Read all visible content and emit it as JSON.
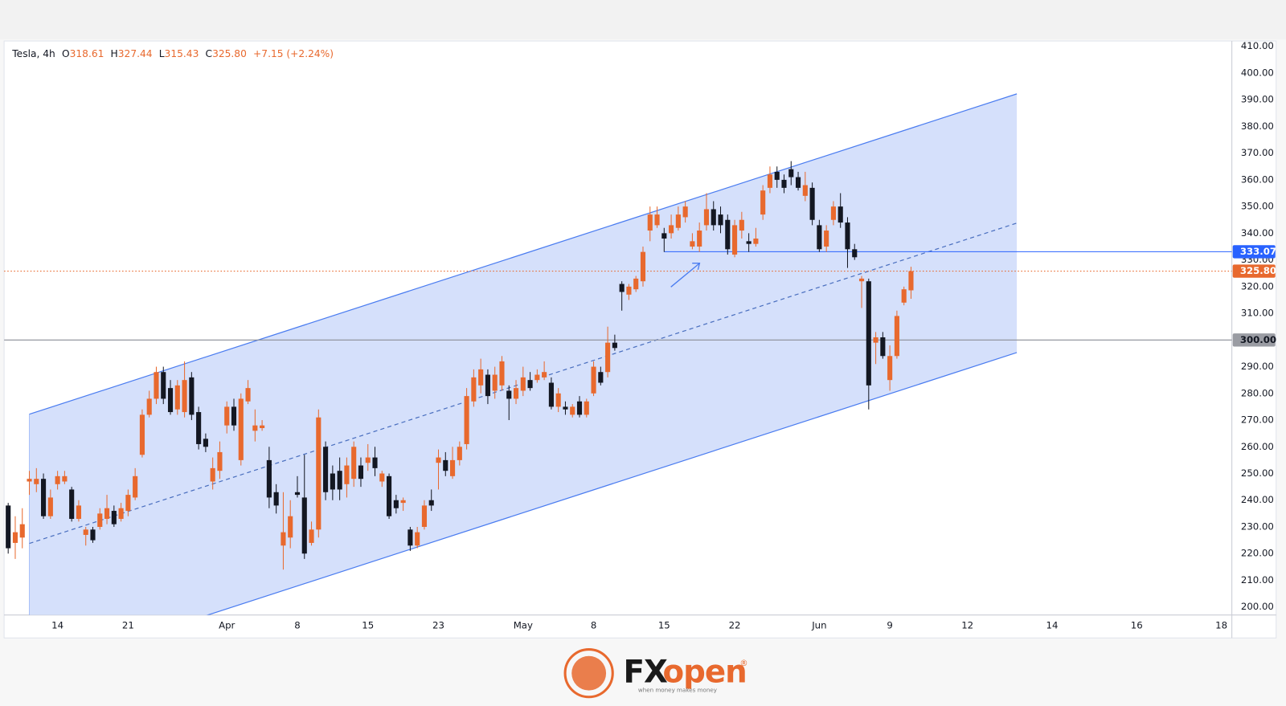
{
  "chart_data": {
    "type": "candlestick",
    "header": {
      "symbol": "Tesla, 4h",
      "fields": [
        {
          "key": "O",
          "value": "318.61"
        },
        {
          "key": "H",
          "value": "327.44"
        },
        {
          "key": "L",
          "value": "315.43"
        },
        {
          "key": "C",
          "value": "325.80"
        }
      ],
      "change": "+7.15 (+2.24%)"
    },
    "up_color": "#e8692e",
    "down_color": "#131722",
    "x": [
      0,
      1,
      2,
      3,
      4,
      5,
      6,
      7,
      8,
      9,
      10,
      11,
      12,
      13,
      14,
      15,
      16,
      17,
      18,
      19,
      20,
      21,
      22,
      23,
      24,
      25,
      26,
      27,
      28,
      29,
      30,
      31,
      32,
      33,
      34,
      35,
      36,
      37,
      38,
      39,
      40,
      41,
      42,
      43,
      44,
      45,
      46,
      47,
      48,
      49,
      50,
      51,
      52,
      53,
      54,
      55,
      56,
      57,
      58,
      59,
      60,
      61,
      62,
      63,
      64,
      65,
      66,
      67,
      68,
      69,
      70,
      71,
      72,
      73,
      74,
      75,
      76,
      77,
      78,
      79,
      80,
      81,
      82,
      83,
      84,
      85,
      86,
      87,
      88,
      89,
      90,
      91,
      92,
      93,
      94,
      95,
      96,
      97,
      98,
      99,
      100,
      101,
      102,
      103,
      104,
      105,
      106,
      107,
      108,
      109,
      110,
      111,
      112,
      113,
      114,
      115,
      116,
      117,
      118,
      119,
      120,
      121,
      122,
      123,
      124,
      125,
      126,
      127,
      128
    ],
    "open": [
      238,
      224,
      226,
      247,
      246,
      248,
      234,
      246,
      247,
      244,
      233,
      227,
      229,
      230,
      233,
      236,
      233,
      236,
      241,
      257,
      272,
      278,
      288,
      282,
      274,
      273,
      286,
      273,
      263,
      247,
      251,
      268,
      275,
      255,
      277,
      266,
      267,
      255,
      243,
      223,
      226,
      243,
      241,
      224,
      229,
      260,
      250,
      251,
      246,
      248,
      253,
      254,
      256,
      247,
      249,
      240,
      239,
      229,
      223,
      230,
      240,
      254,
      255,
      249,
      255,
      261,
      277,
      283,
      287,
      281,
      283,
      281,
      278,
      281,
      285,
      285,
      286,
      284,
      275,
      275,
      272,
      277,
      272,
      280,
      288,
      288,
      299,
      321,
      317,
      319,
      322,
      341,
      343,
      340,
      340,
      342,
      346,
      335,
      335,
      343,
      349,
      347,
      345,
      332,
      341,
      337,
      336,
      347,
      357,
      363,
      360,
      364,
      361,
      354,
      357,
      343,
      335,
      345,
      350,
      344,
      334,
      322,
      322,
      299,
      301,
      285,
      294,
      314,
      318.61
    ],
    "high": [
      239,
      234,
      237,
      251,
      252,
      250,
      244,
      251,
      251,
      245,
      240,
      230,
      230,
      237,
      242,
      238,
      239,
      244,
      252,
      274,
      281,
      290,
      290,
      285,
      285,
      292,
      288,
      275,
      265,
      256,
      262,
      277,
      278,
      280,
      285,
      274,
      270,
      260,
      246,
      243,
      240,
      249,
      257,
      232,
      274,
      262,
      253,
      256,
      256,
      262,
      256,
      261,
      260,
      251,
      250,
      242,
      241,
      230,
      230,
      240,
      244,
      259,
      258,
      260,
      262,
      282,
      289,
      293,
      289,
      290,
      294,
      283,
      285,
      290,
      288,
      289,
      292,
      286,
      282,
      277,
      276,
      279,
      278,
      292,
      290,
      305,
      302,
      322,
      321,
      324,
      335,
      350,
      350,
      342,
      347,
      350,
      352,
      340,
      344,
      355,
      352,
      350,
      347,
      345,
      348,
      340,
      342,
      358,
      365,
      365,
      362,
      367,
      363,
      363,
      359,
      345,
      343,
      352,
      355,
      346,
      336,
      324,
      323,
      303,
      303,
      298,
      311,
      320,
      327.44
    ],
    "low": [
      220,
      218,
      222,
      242,
      243,
      233,
      233,
      244,
      246,
      232,
      232,
      223,
      224,
      229,
      231,
      230,
      232,
      234,
      240,
      256,
      271,
      276,
      276,
      272,
      272,
      271,
      270,
      259,
      258,
      244,
      248,
      265,
      266,
      253,
      276,
      262,
      266,
      237,
      235,
      214,
      222,
      241,
      218,
      223,
      226,
      240,
      240,
      240,
      241,
      245,
      245,
      251,
      249,
      245,
      233,
      235,
      236,
      221,
      222,
      229,
      236,
      244,
      249,
      248,
      253,
      259,
      275,
      280,
      276,
      278,
      281,
      270,
      276,
      279,
      281,
      284,
      285,
      274,
      273,
      272,
      271,
      271,
      271,
      279,
      283,
      286,
      296,
      311,
      315,
      318,
      320,
      337,
      342,
      333,
      338,
      341,
      344,
      334,
      333,
      341,
      341,
      340,
      332,
      331,
      338,
      333,
      335,
      345,
      355,
      357,
      355,
      358,
      356,
      352,
      343,
      333,
      333,
      343,
      342,
      327,
      330,
      312,
      274,
      291,
      293,
      281,
      293,
      313,
      315.43
    ],
    "close": [
      222,
      228,
      231,
      248,
      248,
      234,
      241,
      249,
      249,
      233,
      238,
      229,
      225,
      235,
      237,
      231,
      237,
      242,
      249,
      272,
      278,
      288,
      278,
      273,
      283,
      285,
      272,
      261,
      260,
      252,
      258,
      275,
      268,
      278,
      282,
      268,
      268,
      241,
      238,
      228,
      234,
      242,
      220,
      229,
      271,
      243,
      244,
      244,
      253,
      260,
      248,
      256,
      252,
      250,
      234,
      237,
      240,
      223,
      228,
      238,
      238,
      256,
      251,
      255,
      260,
      279,
      286,
      289,
      279,
      287,
      292,
      278,
      282,
      286,
      282,
      287,
      288,
      275,
      280,
      274,
      275,
      272,
      277,
      290,
      284,
      299,
      297,
      318,
      320,
      323,
      333,
      347,
      347,
      338,
      343,
      347,
      350,
      337,
      341,
      349,
      343,
      343,
      334,
      343,
      345,
      336,
      338,
      356,
      362,
      360,
      357,
      361,
      357,
      358,
      345,
      334,
      341,
      350,
      344,
      334,
      331,
      323,
      283,
      301,
      294,
      294,
      309,
      319,
      325.8
    ],
    "xlim": [
      -0.58,
      173.49
    ],
    "ylim": [
      197,
      412
    ],
    "xticks": [
      {
        "value": 7,
        "label": "14"
      },
      {
        "value": 17,
        "label": "21"
      },
      {
        "value": 31,
        "label": "Apr"
      },
      {
        "value": 41,
        "label": "8"
      },
      {
        "value": 51,
        "label": "15"
      },
      {
        "value": 61,
        "label": "23"
      },
      {
        "value": 73,
        "label": "May"
      },
      {
        "value": 83,
        "label": "8"
      },
      {
        "value": 93,
        "label": "15"
      },
      {
        "value": 103,
        "label": "22"
      },
      {
        "value": 115,
        "label": "Jun"
      },
      {
        "value": 125,
        "label": "9"
      },
      {
        "value": 136,
        "label": "12"
      },
      {
        "value": 148,
        "label": "14"
      },
      {
        "value": 160,
        "label": "16"
      },
      {
        "value": 172,
        "label": "18"
      }
    ],
    "yticks": [
      {
        "value": 200,
        "label": "200.00"
      },
      {
        "value": 210,
        "label": "210.00"
      },
      {
        "value": 220,
        "label": "220.00"
      },
      {
        "value": 230,
        "label": "230.00"
      },
      {
        "value": 240,
        "label": "240.00"
      },
      {
        "value": 250,
        "label": "250.00"
      },
      {
        "value": 260,
        "label": "260.00"
      },
      {
        "value": 270,
        "label": "270.00"
      },
      {
        "value": 280,
        "label": "280.00"
      },
      {
        "value": 290,
        "label": "290.00"
      },
      {
        "value": 300,
        "label": "300.00"
      },
      {
        "value": 310,
        "label": "310.00"
      },
      {
        "value": 320,
        "label": "320.00"
      },
      {
        "value": 330,
        "label": "330.00"
      },
      {
        "value": 340,
        "label": "340.00"
      },
      {
        "value": 350,
        "label": "350.00"
      },
      {
        "value": 360,
        "label": "360.00"
      },
      {
        "value": 370,
        "label": "370.00"
      },
      {
        "value": 380,
        "label": "380.00"
      },
      {
        "value": 390,
        "label": "390.00"
      },
      {
        "value": 400,
        "label": "400.00"
      },
      {
        "value": 410,
        "label": "410.00"
      }
    ],
    "grid": false,
    "channel": {
      "x": [
        3,
        143
      ],
      "upper": [
        272.2,
        392.2
      ],
      "middle": [
        223.8,
        343.8
      ],
      "lower": [
        175.3,
        295.3
      ],
      "color": "#4a7cf0",
      "fill": "#d3defb"
    },
    "hlines": [
      {
        "value": 300.0,
        "label": "300.00",
        "color": "#8a8d96",
        "label_bg": "#9a9ca3",
        "label_color": "#131722",
        "style": "solid"
      },
      {
        "value": 333.07,
        "label": "333.07",
        "color": "#2962ff",
        "label_bg": "#2962ff",
        "label_color": "#ffffff",
        "style": "solid",
        "x_start": 93
      },
      {
        "value": 325.8,
        "label": "325.80",
        "color": "#e8692e",
        "label_bg": "#e8692e",
        "label_color": "#ffffff",
        "style": "dotted"
      }
    ],
    "logo": {
      "parts": [
        "FX",
        "open"
      ],
      "mark": "®",
      "tagline": "when money makes money"
    }
  }
}
